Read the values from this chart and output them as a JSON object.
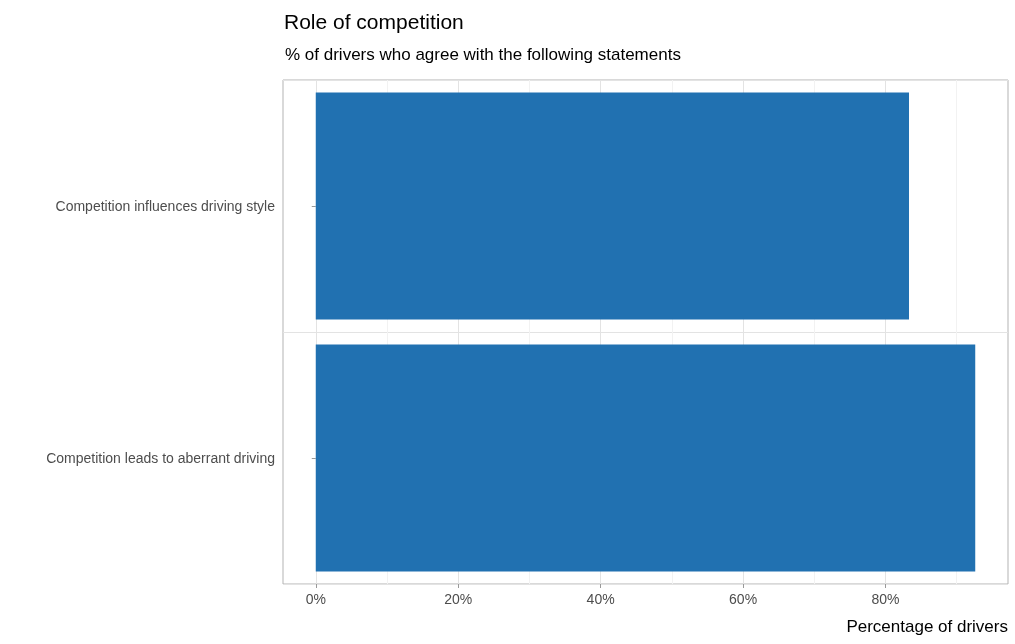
{
  "chart_data": {
    "type": "bar",
    "orientation": "horizontal",
    "title": "Role of competition",
    "subtitle": "% of drivers who agree with the following statements",
    "categories": [
      "Competition influences driving style",
      "Competition leads to aberrant driving"
    ],
    "values": [
      83.3,
      92.6
    ],
    "color": "#2171b1",
    "xlabel": "Percentage of drivers",
    "xlim": [
      -4.6,
      97.2
    ],
    "xticks": [
      {
        "value": 0,
        "label": "0%"
      },
      {
        "value": 20,
        "label": "20%"
      },
      {
        "value": 40,
        "label": "40%"
      },
      {
        "value": 60,
        "label": "60%"
      },
      {
        "value": 80,
        "label": "80%"
      }
    ],
    "grid": true
  }
}
